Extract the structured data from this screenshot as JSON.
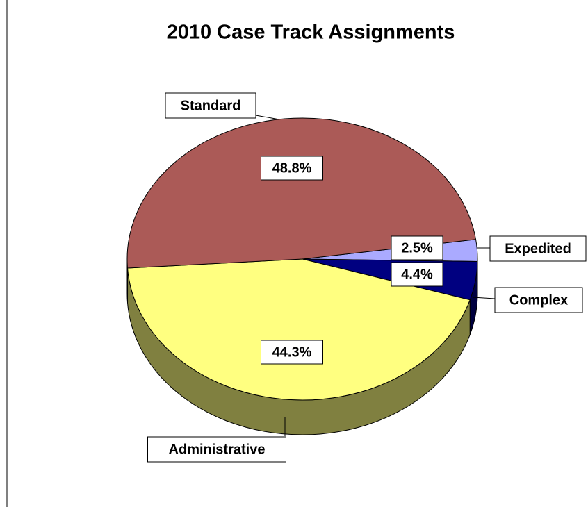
{
  "chart_data": {
    "type": "pie",
    "title": "2010 Case Track Assignments",
    "categories": [
      "Expedited",
      "Complex",
      "Administrative",
      "Standard"
    ],
    "values": [
      2.5,
      4.4,
      44.3,
      48.8
    ],
    "value_labels": [
      "2.5%",
      "4.4%",
      "44.3%",
      "48.8%"
    ],
    "colors": [
      "#aaaaff",
      "#000080",
      "#ffff80",
      "#ab5a57"
    ]
  }
}
